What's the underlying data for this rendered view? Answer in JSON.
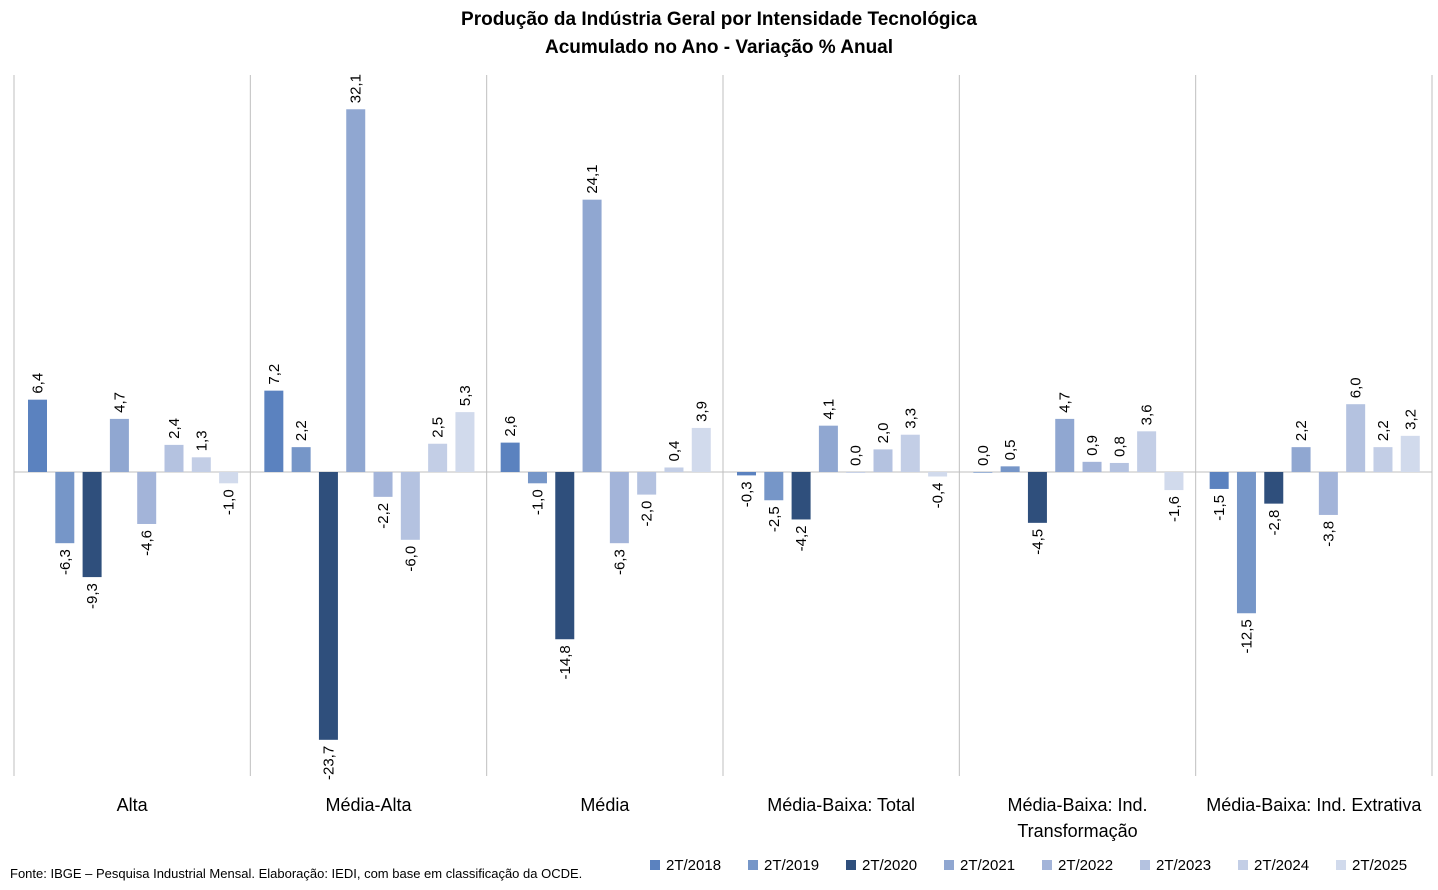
{
  "chart_data": {
    "type": "bar",
    "title": "Produção da Indústria Geral por Intensidade Tecnológica",
    "subtitle": "Acumulado no Ano - Variação % Anual",
    "categories": [
      "Alta",
      "Média-Alta",
      "Média",
      "Média-Baixa: Total",
      "Média-Baixa: Ind. Transformação",
      "Média-Baixa: Ind. Extrativa"
    ],
    "category_label_lines": [
      [
        "Alta"
      ],
      [
        "Média-Alta"
      ],
      [
        "Média"
      ],
      [
        "Média-Baixa: Total"
      ],
      [
        "Média-Baixa: Ind.",
        "Transformação"
      ],
      [
        "Média-Baixa: Ind. Extrativa"
      ]
    ],
    "series": [
      {
        "name": "2T/2018",
        "color": "#5B82BF",
        "values": [
          6.4,
          7.2,
          2.6,
          -0.3,
          0.0,
          -1.5
        ],
        "labels": [
          "6,4",
          "7,2",
          "2,6",
          "-0,3",
          "0,0",
          "-1,5"
        ]
      },
      {
        "name": "2T/2019",
        "color": "#7696C8",
        "values": [
          -6.3,
          2.2,
          -1.0,
          -2.5,
          0.5,
          -12.5
        ],
        "labels": [
          "-6,3",
          "2,2",
          "-1,0",
          "-2,5",
          "0,5",
          "-12,5"
        ]
      },
      {
        "name": "2T/2020",
        "color": "#2F4F7C",
        "values": [
          -9.3,
          -23.7,
          -14.8,
          -4.2,
          -4.5,
          -2.8
        ],
        "labels": [
          "-9,3",
          "-23,7",
          "-14,8",
          "-4,2",
          "-4,5",
          "-2,8"
        ]
      },
      {
        "name": "2T/2021",
        "color": "#90A7D1",
        "values": [
          4.7,
          32.1,
          24.1,
          4.1,
          4.7,
          2.2
        ],
        "labels": [
          "4,7",
          "32,1",
          "24,1",
          "4,1",
          "4,7",
          "2,2"
        ]
      },
      {
        "name": "2T/2022",
        "color": "#A3B4D9",
        "values": [
          -4.6,
          -2.2,
          -6.3,
          0.0,
          0.9,
          -3.8
        ],
        "labels": [
          "-4,6",
          "-2,2",
          "-6,3",
          "0,0",
          "0,9",
          "-3,8"
        ]
      },
      {
        "name": "2T/2023",
        "color": "#B4C2E0",
        "values": [
          2.4,
          -6.0,
          -2.0,
          2.0,
          0.8,
          6.0
        ],
        "labels": [
          "2,4",
          "-6,0",
          "-2,0",
          "2,0",
          "0,8",
          "6,0"
        ]
      },
      {
        "name": "2T/2024",
        "color": "#C3CEE6",
        "values": [
          1.3,
          2.5,
          0.4,
          3.3,
          3.6,
          2.2
        ],
        "labels": [
          "1,3",
          "2,5",
          "0,4",
          "3,3",
          "3,6",
          "2,2"
        ]
      },
      {
        "name": "2T/2025",
        "color": "#D1DAEC",
        "values": [
          -1.0,
          5.3,
          3.9,
          -0.4,
          -1.6,
          3.2
        ],
        "labels": [
          "-1,0",
          "5,3",
          "3,9",
          "-0,4",
          "-1,6",
          "3,2"
        ]
      }
    ],
    "xlabel": "",
    "ylabel": "",
    "ylim": [
      -27,
      35
    ],
    "grid": false,
    "legend_position": "bottom-right",
    "colors": {
      "axis": "#bfbfbf",
      "text": "#000000"
    }
  },
  "source_note": "Fonte: IBGE – Pesquisa Industrial Mensal. Elaboração: IEDI, com base em classificação da OCDE."
}
